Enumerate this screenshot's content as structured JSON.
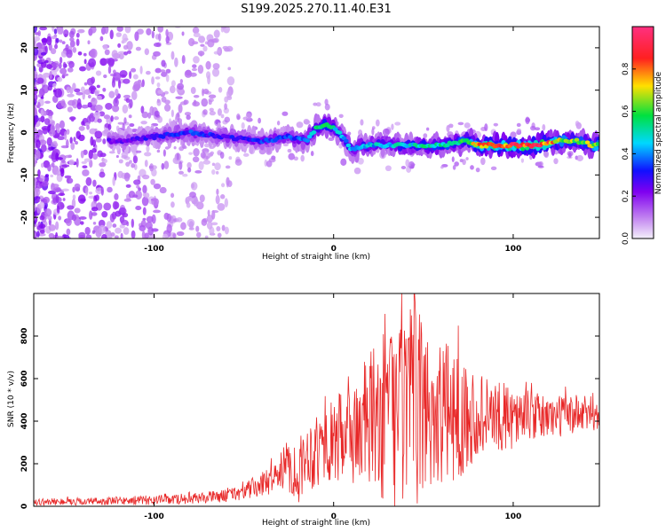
{
  "chart_data": [
    {
      "type": "heatmap",
      "title": "S199.2025.270.11.40.E31",
      "xlabel": "Height of straight line (km)",
      "ylabel": "Frequency (Hz)",
      "xlim": [
        -167,
        148
      ],
      "ylim": [
        -25,
        25
      ],
      "xticks": [
        -100,
        0,
        100
      ],
      "xtick_labels": [
        "-100",
        "0",
        "100"
      ],
      "yticks": [
        -20,
        -10,
        0,
        10,
        20
      ],
      "ytick_labels": [
        "-20",
        "-10",
        "0",
        "10",
        "20"
      ],
      "colorbar": {
        "label": "Normalized spectral amplitude",
        "range": [
          0,
          1
        ],
        "ticks": [
          0.0,
          0.2,
          0.4,
          0.6,
          0.8
        ],
        "tick_labels": [
          "0.0",
          "0.2",
          "0.4",
          "0.6",
          "0.8"
        ],
        "colors": [
          "#f4f0fa",
          "#a040f0",
          "#1010ff",
          "#00d8ff",
          "#00e040",
          "#ffe000",
          "#ff2020",
          "#ff3080"
        ]
      },
      "ridge": {
        "x": [
          -120,
          -100,
          -80,
          -60,
          -40,
          -25,
          -15,
          -10,
          -5,
          0,
          5,
          10,
          20,
          40,
          60,
          75,
          80,
          90,
          100,
          115,
          125,
          135,
          145
        ],
        "freq": [
          -2,
          -1,
          0,
          -1,
          -2,
          -1,
          -2,
          1,
          2,
          1,
          -1,
          -4,
          -3,
          -3,
          -3,
          -2,
          -3,
          -3,
          -3,
          -3,
          -2,
          -2,
          -3
        ],
        "amplitude": [
          0.25,
          0.3,
          0.35,
          0.3,
          0.35,
          0.35,
          0.4,
          0.5,
          0.55,
          0.5,
          0.45,
          0.45,
          0.45,
          0.5,
          0.55,
          0.6,
          0.8,
          0.85,
          0.9,
          0.95,
          0.7,
          0.65,
          0.7
        ]
      }
    },
    {
      "type": "line",
      "xlabel": "Height of straight line (km)",
      "ylabel": "SNR (10 * v/v)",
      "xlim": [
        -167,
        148
      ],
      "ylim": [
        0,
        1000
      ],
      "xticks": [
        -100,
        0,
        100
      ],
      "xtick_labels": [
        "-100",
        "0",
        "100"
      ],
      "yticks": [
        0,
        200,
        400,
        600,
        800
      ],
      "ytick_labels": [
        "0",
        "200",
        "400",
        "600",
        "800"
      ],
      "color": "#e82828",
      "envelope": {
        "x": [
          -167,
          -120,
          -80,
          -60,
          -50,
          -40,
          -30,
          -25,
          -20,
          -15,
          -10,
          -5,
          0,
          10,
          20,
          30,
          40,
          50,
          60,
          70,
          80,
          90,
          100,
          110,
          120,
          130,
          140,
          148
        ],
        "mean": [
          20,
          25,
          35,
          50,
          70,
          100,
          160,
          200,
          150,
          250,
          250,
          300,
          300,
          340,
          400,
          420,
          450,
          460,
          440,
          430,
          430,
          420,
          420,
          420,
          420,
          430,
          430,
          440
        ],
        "spread": [
          15,
          20,
          25,
          30,
          40,
          60,
          80,
          130,
          150,
          150,
          180,
          180,
          200,
          250,
          330,
          420,
          500,
          430,
          350,
          300,
          200,
          170,
          150,
          120,
          100,
          100,
          90,
          80
        ]
      }
    }
  ]
}
